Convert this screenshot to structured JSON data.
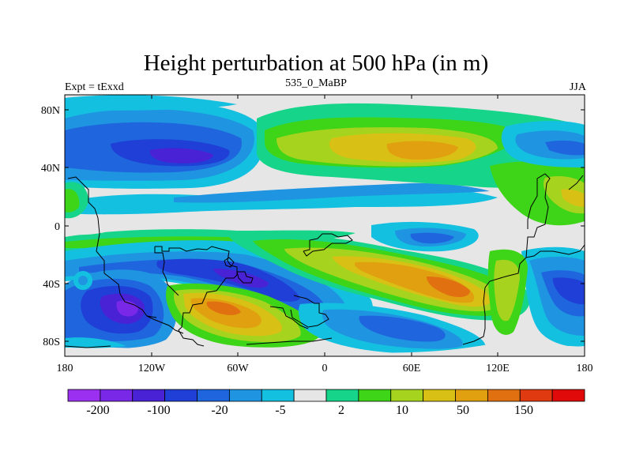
{
  "title": "Height perturbation at 500 hPa (in m)",
  "left_string": "Expt = tExxd",
  "center_string": "535_0_MaBP",
  "right_string": "JJA",
  "axes": {
    "x_ticks": [
      "180",
      "120W",
      "60W",
      "0",
      "60E",
      "120E",
      "180"
    ],
    "y_ticks": [
      "80N",
      "40N",
      "0",
      "40S",
      "80S"
    ]
  },
  "colorbar": {
    "colors": [
      "#9b30f0",
      "#7a28e8",
      "#4a22d6",
      "#1f3fd6",
      "#1f66de",
      "#1f94e0",
      "#14c0e0",
      "#e6e6e6",
      "#16d48a",
      "#3ed418",
      "#a6d41e",
      "#d8c014",
      "#e0a010",
      "#e07010",
      "#e03a10",
      "#e00a0a"
    ],
    "labels": [
      "-200",
      "-100",
      "-20",
      "-5",
      "2",
      "10",
      "50",
      "150"
    ]
  }
}
